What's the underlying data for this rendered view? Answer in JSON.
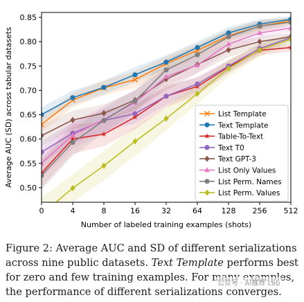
{
  "chart_data": {
    "type": "line",
    "xlabel": "Number of labeled training examples (shots)",
    "ylabel": "Average AUC (SD) across tabular datasets",
    "categories": [
      "0",
      "4",
      "8",
      "16",
      "32",
      "64",
      "128",
      "256",
      "512"
    ],
    "ylim": [
      0.47,
      0.86
    ],
    "yticks": [
      0.5,
      0.55,
      0.6,
      0.65,
      0.7,
      0.75,
      0.8,
      0.85
    ],
    "ytick_labels": [
      "0.50",
      "0.55",
      "0.60",
      "0.65",
      "0.70",
      "0.75",
      "0.80",
      "0.85"
    ],
    "grid": false,
    "legend_position": "bottom-right",
    "series": [
      {
        "name": "List Template",
        "color": "#ff7f0e",
        "marker": "x",
        "values": [
          0.63,
          0.68,
          0.705,
          0.722,
          0.755,
          0.782,
          0.812,
          0.832,
          0.843
        ]
      },
      {
        "name": "Text Template",
        "color": "#1f77b4",
        "marker": "circle",
        "values": [
          0.65,
          0.685,
          0.706,
          0.732,
          0.758,
          0.788,
          0.818,
          0.836,
          0.846
        ]
      },
      {
        "name": "Table-To-Text",
        "color": "#d62728",
        "marker": "star",
        "values": [
          0.53,
          0.6,
          0.61,
          0.645,
          0.688,
          0.708,
          0.748,
          0.782,
          0.788
        ]
      },
      {
        "name": "Text T0",
        "color": "#9467bd",
        "marker": "circle",
        "values": [
          0.573,
          0.612,
          0.638,
          0.652,
          0.688,
          0.713,
          0.75,
          0.786,
          0.808
        ]
      },
      {
        "name": "Text GPT-3",
        "color": "#8c564b",
        "marker": "diamond",
        "values": [
          0.607,
          0.639,
          0.653,
          0.68,
          0.723,
          0.753,
          0.783,
          0.8,
          0.81
        ]
      },
      {
        "name": "List Only Values",
        "color": "#e377c2",
        "marker": "triangle",
        "values": [
          0.55,
          0.608,
          0.64,
          0.675,
          0.728,
          0.752,
          0.795,
          0.818,
          0.828
        ]
      },
      {
        "name": "List Perm. Names",
        "color": "#7f7f7f",
        "marker": "circle",
        "values": [
          0.525,
          0.593,
          0.638,
          0.678,
          0.742,
          0.773,
          0.81,
          0.832,
          0.84
        ]
      },
      {
        "name": "List Perm. Values",
        "color": "#bcbd22",
        "marker": "diamond",
        "values": [
          0.445,
          0.499,
          0.545,
          0.595,
          0.642,
          0.693,
          0.745,
          0.783,
          0.805
        ]
      }
    ],
    "bands": [
      {
        "series": "List Template",
        "lower": [
          0.615,
          0.665,
          0.69,
          0.705,
          0.74,
          0.768,
          0.8,
          0.822,
          0.836
        ],
        "upper": [
          0.645,
          0.695,
          0.72,
          0.74,
          0.77,
          0.796,
          0.824,
          0.842,
          0.85
        ]
      },
      {
        "series": "Text Template",
        "lower": [
          0.635,
          0.67,
          0.692,
          0.716,
          0.744,
          0.775,
          0.806,
          0.826,
          0.84
        ],
        "upper": [
          0.665,
          0.7,
          0.72,
          0.748,
          0.772,
          0.8,
          0.83,
          0.846,
          0.852
        ]
      },
      {
        "series": "Table-To-Text",
        "lower": [
          0.5,
          0.57,
          0.585,
          0.62,
          0.665,
          0.69,
          0.735,
          0.772,
          0.78
        ],
        "upper": [
          0.56,
          0.63,
          0.635,
          0.67,
          0.71,
          0.726,
          0.761,
          0.792,
          0.796
        ]
      },
      {
        "series": "Text T0",
        "lower": [
          0.55,
          0.59,
          0.615,
          0.632,
          0.67,
          0.698,
          0.738,
          0.776,
          0.8
        ],
        "upper": [
          0.596,
          0.634,
          0.661,
          0.672,
          0.706,
          0.728,
          0.762,
          0.796,
          0.816
        ]
      },
      {
        "series": "Text GPT-3",
        "lower": [
          0.585,
          0.62,
          0.635,
          0.66,
          0.7,
          0.735,
          0.768,
          0.79,
          0.802
        ],
        "upper": [
          0.629,
          0.658,
          0.671,
          0.7,
          0.746,
          0.771,
          0.798,
          0.81,
          0.818
        ]
      },
      {
        "series": "List Only Values",
        "lower": [
          0.52,
          0.58,
          0.612,
          0.65,
          0.71,
          0.736,
          0.78,
          0.806,
          0.82
        ],
        "upper": [
          0.58,
          0.636,
          0.668,
          0.7,
          0.746,
          0.768,
          0.81,
          0.83,
          0.836
        ]
      },
      {
        "series": "List Perm. Names",
        "lower": [
          0.495,
          0.565,
          0.612,
          0.655,
          0.72,
          0.755,
          0.795,
          0.82,
          0.832
        ],
        "upper": [
          0.555,
          0.621,
          0.664,
          0.701,
          0.764,
          0.791,
          0.825,
          0.844,
          0.848
        ]
      },
      {
        "series": "List Perm. Values",
        "lower": [
          0.41,
          0.47,
          0.515,
          0.565,
          0.618,
          0.672,
          0.728,
          0.77,
          0.795
        ],
        "upper": [
          0.48,
          0.528,
          0.575,
          0.625,
          0.666,
          0.714,
          0.762,
          0.796,
          0.815
        ]
      }
    ]
  },
  "caption": {
    "line1": "Figure 2: Average AUC and SD of different serializations",
    "line2": "across nine public datasets.",
    "line2_italic": "Text Template",
    "line2_rest": "performs best",
    "line3": "for zero and few training examples. For many examples,",
    "line4": "the performance of different serializations converges."
  },
  "watermark": "公众号 · AI推荐 Lab"
}
